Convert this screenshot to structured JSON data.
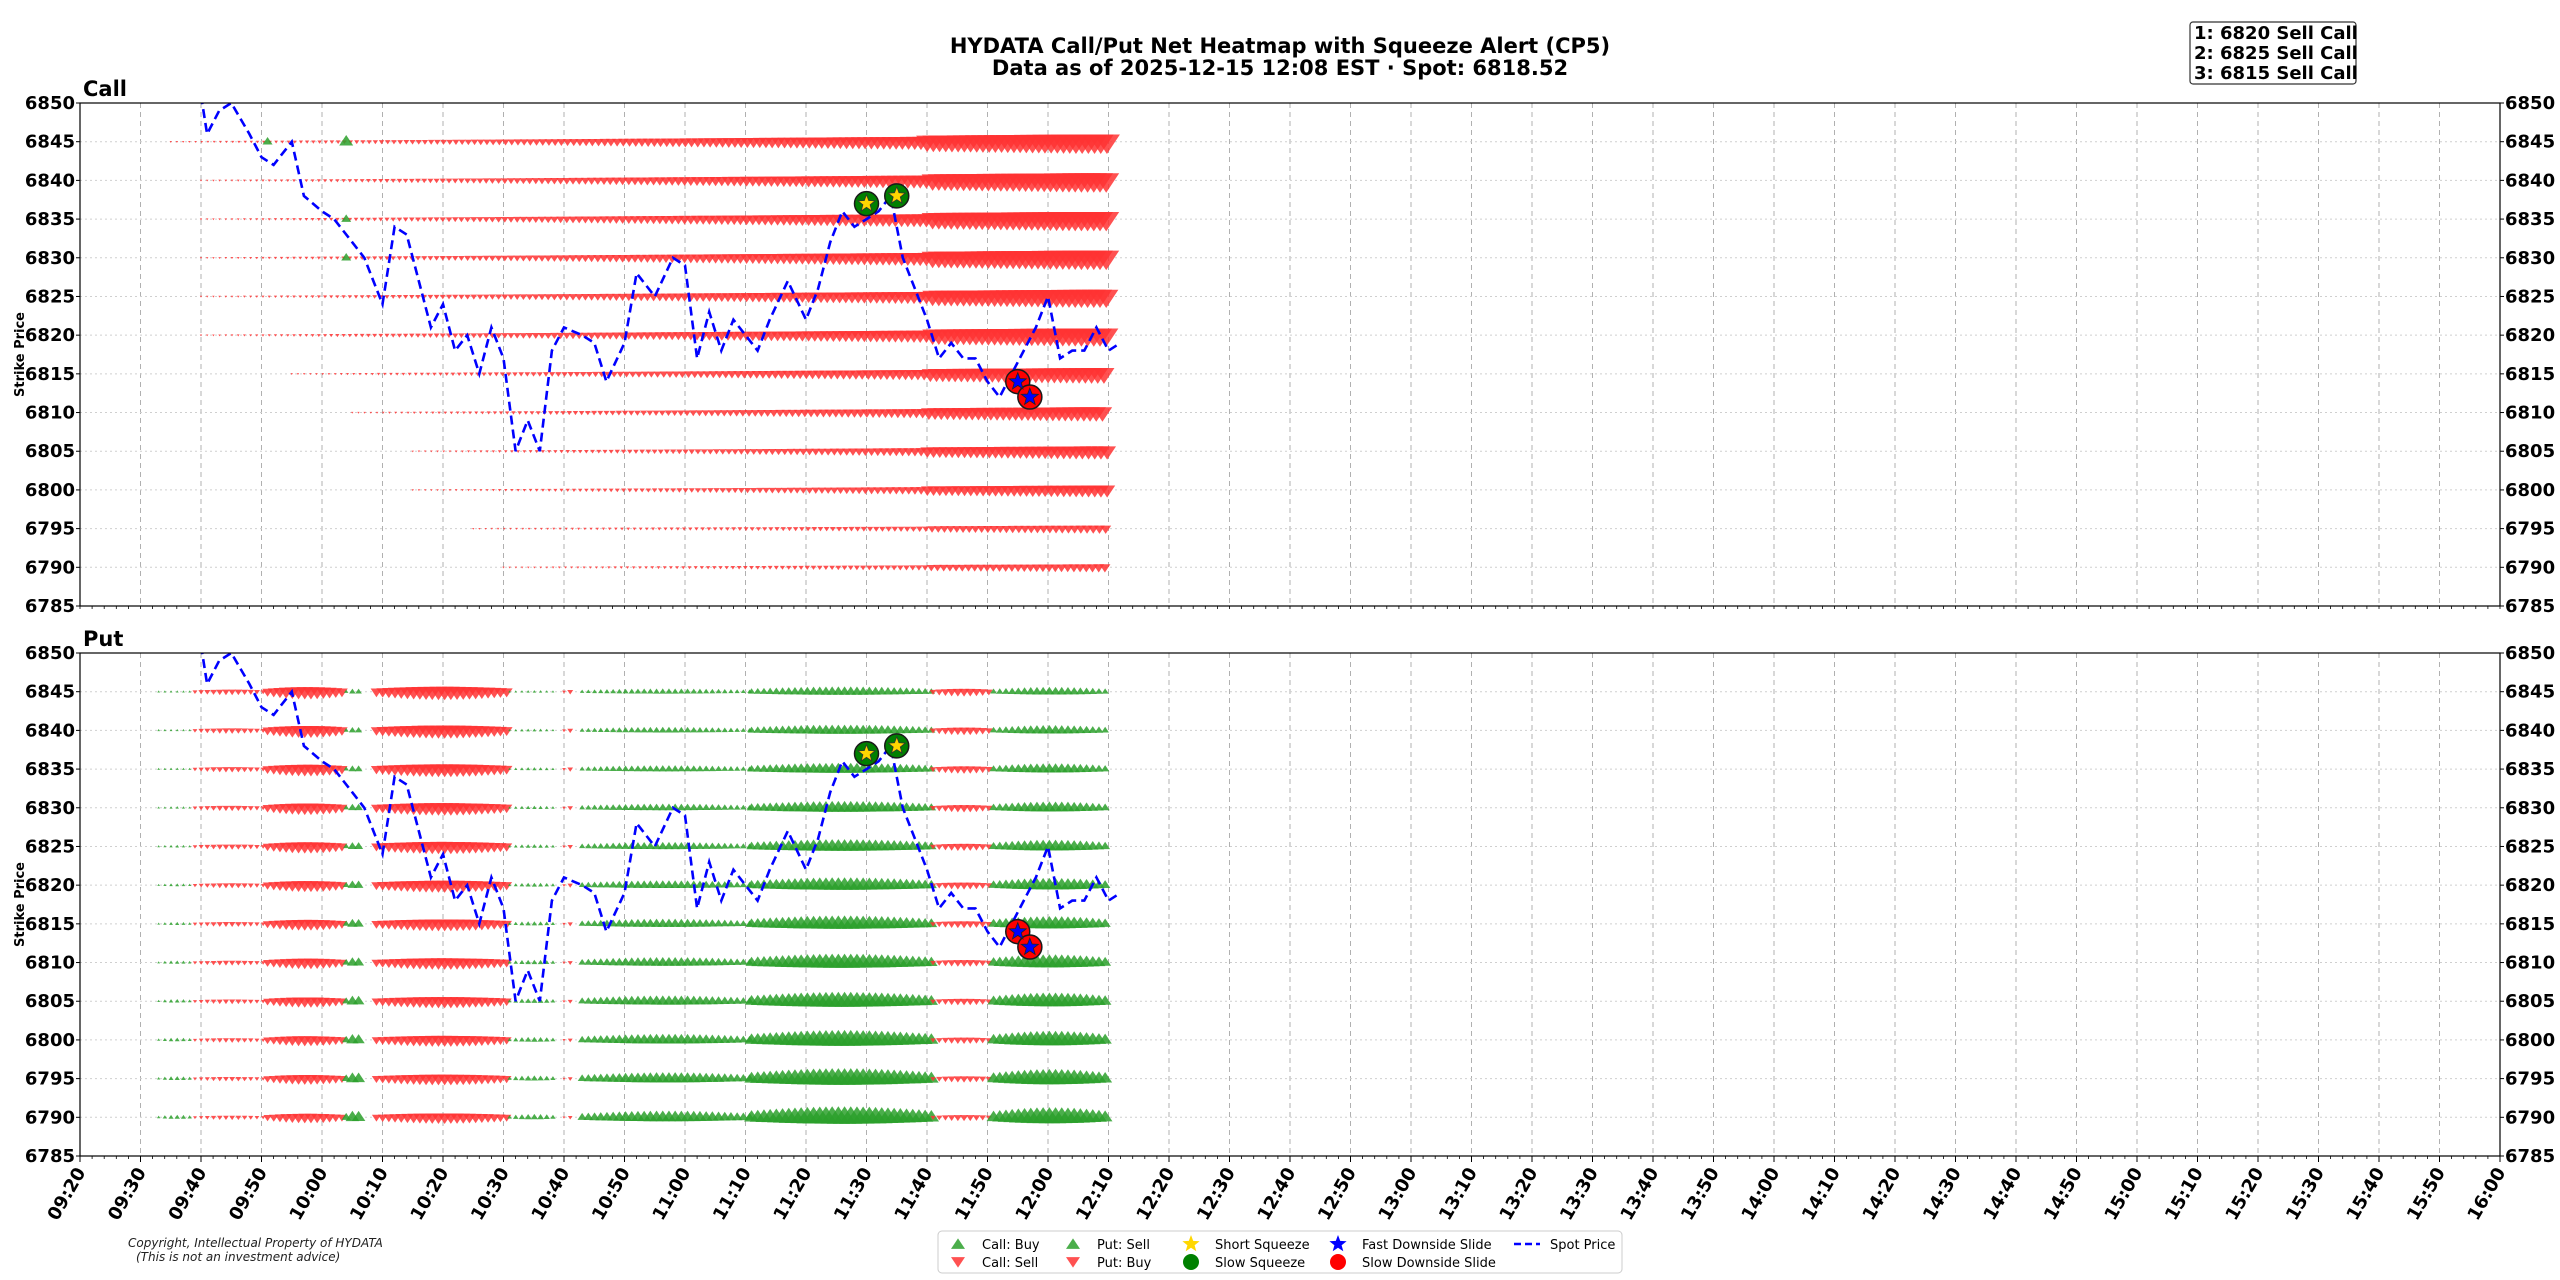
{
  "chart_data": {
    "type": "heatmap",
    "title": "HYDATA Call/Put Net Heatmap with Squeeze Alert (CP5)",
    "subtitle": "Data as of 2025-12-15 12:08 EST · Spot: 6818.52",
    "ylabel": "Strike Price",
    "ylim": [
      6785,
      6850
    ],
    "yticks": [
      6850,
      6845,
      6840,
      6835,
      6830,
      6825,
      6820,
      6815,
      6810,
      6805,
      6800,
      6795,
      6790,
      6785
    ],
    "x_ticks": [
      "09:20",
      "09:30",
      "09:40",
      "09:50",
      "10:00",
      "10:10",
      "10:20",
      "10:30",
      "10:40",
      "10:50",
      "11:00",
      "11:10",
      "11:20",
      "11:30",
      "11:40",
      "11:50",
      "12:00",
      "12:10",
      "12:20",
      "12:30",
      "12:40",
      "12:50",
      "13:00",
      "13:10",
      "13:20",
      "13:30",
      "13:40",
      "13:50",
      "14:00",
      "14:10",
      "14:20",
      "14:30",
      "14:40",
      "14:50",
      "15:00",
      "15:10",
      "15:20",
      "15:30",
      "15:40",
      "15:50",
      "16:00"
    ],
    "x_range": [
      "09:20",
      "16:00"
    ],
    "grid": true,
    "legend_placement": "bottom-center",
    "panels": [
      {
        "name": "Call",
        "strikes": [
          6845,
          6840,
          6835,
          6830,
          6825,
          6820,
          6815,
          6810,
          6805,
          6800,
          6795,
          6790
        ],
        "rows": [
          {
            "strike": 6845,
            "start": "09:35",
            "peak": 14
          },
          {
            "strike": 6840,
            "start": "09:40",
            "peak": 14
          },
          {
            "strike": 6835,
            "start": "09:40",
            "peak": 14
          },
          {
            "strike": 6830,
            "start": "09:40",
            "peak": 14
          },
          {
            "strike": 6825,
            "start": "09:40",
            "peak": 13
          },
          {
            "strike": 6820,
            "start": "09:40",
            "peak": 13
          },
          {
            "strike": 6815,
            "start": "09:55",
            "peak": 11
          },
          {
            "strike": 6810,
            "start": "10:05",
            "peak": 10
          },
          {
            "strike": 6805,
            "start": "10:15",
            "peak": 9
          },
          {
            "strike": 6800,
            "start": "10:15",
            "peak": 8
          },
          {
            "strike": 6795,
            "start": "10:25",
            "peak": 5
          },
          {
            "strike": 6790,
            "start": "10:30",
            "peak": 5
          }
        ],
        "buy_marks": [
          {
            "time": "09:51",
            "strike": 6845,
            "size": 5
          },
          {
            "time": "10:04",
            "strike": 6845,
            "size": 7
          },
          {
            "time": "10:04",
            "strike": 6835,
            "size": 5
          },
          {
            "time": "10:04",
            "strike": 6830,
            "size": 5
          }
        ]
      },
      {
        "name": "Put",
        "strikes": [
          6845,
          6840,
          6835,
          6830,
          6825,
          6820,
          6815,
          6810,
          6805,
          6800,
          6795,
          6790
        ],
        "rows": [
          6845,
          6840,
          6835,
          6830,
          6825,
          6820,
          6815,
          6810,
          6805,
          6800,
          6795,
          6790
        ],
        "segments": [
          {
            "from": "09:33",
            "to": "09:39",
            "side": "buy",
            "size": 3
          },
          {
            "from": "09:39",
            "to": "09:51",
            "side": "sell",
            "size": 5
          },
          {
            "from": "09:51",
            "to": "10:04",
            "side": "sell",
            "size": 11
          },
          {
            "from": "10:04",
            "to": "10:07",
            "side": "buy",
            "size": 8
          },
          {
            "from": "10:09",
            "to": "10:31",
            "side": "sell",
            "size": 12
          },
          {
            "from": "10:31",
            "to": "10:39",
            "side": "buy",
            "size": 4
          },
          {
            "from": "10:40",
            "to": "10:42",
            "side": "sell",
            "size": 4
          },
          {
            "from": "10:43",
            "to": "11:11",
            "side": "buy",
            "size": 8
          },
          {
            "from": "11:11",
            "to": "11:41",
            "side": "buy",
            "size": 13
          },
          {
            "from": "11:41",
            "to": "11:51",
            "side": "sell",
            "size": 7
          },
          {
            "from": "11:51",
            "to": "12:10",
            "side": "buy",
            "size": 12
          }
        ]
      }
    ],
    "spot_price": {
      "name": "Spot Price",
      "points": [
        [
          "09:40",
          6851
        ],
        [
          "09:41",
          6846
        ],
        [
          "09:43",
          6849
        ],
        [
          "09:45",
          6850
        ],
        [
          "09:48",
          6846
        ],
        [
          "09:50",
          6843
        ],
        [
          "09:52",
          6842
        ],
        [
          "09:53",
          6843
        ],
        [
          "09:55",
          6845
        ],
        [
          "09:57",
          6838
        ],
        [
          "10:00",
          6836
        ],
        [
          "10:02",
          6835
        ],
        [
          "10:05",
          6832
        ],
        [
          "10:07",
          6830
        ],
        [
          "10:10",
          6824
        ],
        [
          "10:12",
          6834
        ],
        [
          "10:14",
          6833
        ],
        [
          "10:16",
          6827
        ],
        [
          "10:18",
          6821
        ],
        [
          "10:20",
          6824
        ],
        [
          "10:22",
          6818
        ],
        [
          "10:24",
          6820
        ],
        [
          "10:26",
          6815
        ],
        [
          "10:28",
          6821
        ],
        [
          "10:30",
          6817
        ],
        [
          "10:32",
          6805
        ],
        [
          "10:34",
          6809
        ],
        [
          "10:36",
          6805
        ],
        [
          "10:38",
          6818
        ],
        [
          "10:40",
          6821
        ],
        [
          "10:43",
          6820
        ],
        [
          "10:45",
          6819
        ],
        [
          "10:47",
          6814
        ],
        [
          "10:50",
          6819
        ],
        [
          "10:52",
          6828
        ],
        [
          "10:55",
          6825
        ],
        [
          "10:58",
          6830
        ],
        [
          "11:00",
          6829
        ],
        [
          "11:02",
          6817
        ],
        [
          "11:04",
          6823
        ],
        [
          "11:06",
          6818
        ],
        [
          "11:08",
          6822
        ],
        [
          "11:10",
          6820
        ],
        [
          "11:12",
          6818
        ],
        [
          "11:14",
          6822
        ],
        [
          "11:17",
          6827
        ],
        [
          "11:20",
          6822
        ],
        [
          "11:22",
          6826
        ],
        [
          "11:24",
          6832
        ],
        [
          "11:26",
          6836
        ],
        [
          "11:28",
          6834
        ],
        [
          "11:30",
          6835
        ],
        [
          "11:32",
          6836
        ],
        [
          "11:34",
          6838
        ],
        [
          "11:36",
          6830
        ],
        [
          "11:38",
          6826
        ],
        [
          "11:40",
          6822
        ],
        [
          "11:42",
          6817
        ],
        [
          "11:44",
          6819
        ],
        [
          "11:46",
          6817
        ],
        [
          "11:48",
          6817
        ],
        [
          "11:50",
          6814
        ],
        [
          "11:52",
          6812
        ],
        [
          "11:54",
          6815
        ],
        [
          "11:56",
          6818
        ],
        [
          "11:58",
          6821
        ],
        [
          "12:00",
          6825
        ],
        [
          "12:02",
          6817
        ],
        [
          "12:04",
          6818
        ],
        [
          "12:06",
          6818
        ],
        [
          "12:08",
          6821
        ],
        [
          "12:10",
          6818
        ],
        [
          "12:12",
          6819
        ]
      ]
    },
    "alerts": [
      {
        "type": "Slow Squeeze",
        "time": "11:30",
        "price": 6837
      },
      {
        "type": "Slow Squeeze",
        "time": "11:35",
        "price": 6838
      },
      {
        "type": "Short Squeeze",
        "time": "11:30",
        "price": 6837
      },
      {
        "type": "Short Squeeze",
        "time": "11:35",
        "price": 6838
      },
      {
        "type": "Slow Downside Slide",
        "time": "11:55",
        "price": 6814
      },
      {
        "type": "Slow Downside Slide",
        "time": "11:57",
        "price": 6812
      },
      {
        "type": "Fast Downside Slide",
        "time": "11:55",
        "price": 6814
      },
      {
        "type": "Fast Downside Slide",
        "time": "11:57",
        "price": 6812
      }
    ],
    "alert_box": [
      "1: 6820 Sell Call",
      "2: 6825 Sell Call",
      "3: 6815 Sell Call"
    ],
    "legend": [
      {
        "label": "Call: Buy",
        "marker": "triangle-up",
        "color": "#2ca02c"
      },
      {
        "label": "Call: Sell",
        "marker": "triangle-down",
        "color": "#ff3333"
      },
      {
        "label": "Put: Sell",
        "marker": "triangle-up",
        "color": "#2ca02c"
      },
      {
        "label": "Put: Buy",
        "marker": "triangle-down",
        "color": "#ff3333"
      },
      {
        "label": "Short Squeeze",
        "marker": "star",
        "color": "#ffd700"
      },
      {
        "label": "Slow Squeeze",
        "marker": "circle",
        "color": "#008000"
      },
      {
        "label": "Fast Downside Slide",
        "marker": "star",
        "color": "#0000ff"
      },
      {
        "label": "Slow Downside Slide",
        "marker": "circle",
        "color": "#ff0000"
      },
      {
        "label": "Spot Price",
        "marker": "dashed-line",
        "color": "#0000ff"
      }
    ],
    "colors": {
      "up": "#2ca02c",
      "down": "#ff3333",
      "spot": "#0000ff"
    }
  },
  "copyright": {
    "line1": "Copyright, Intellectual Property of HYDATA",
    "line2": "(This is not an investment advice)"
  }
}
